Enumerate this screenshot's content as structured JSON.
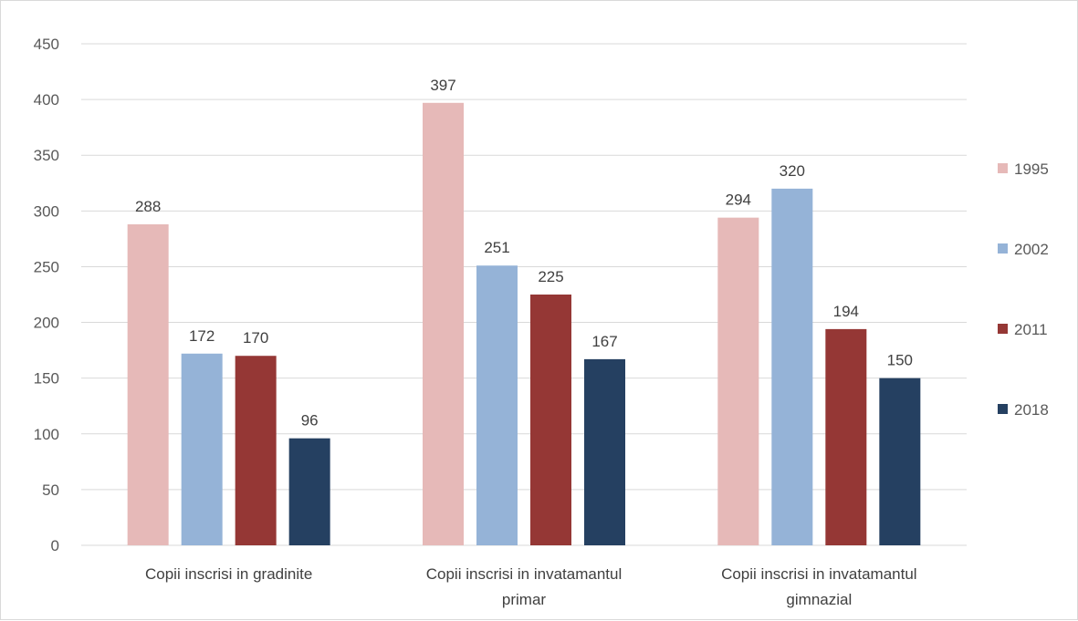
{
  "chart_data": {
    "type": "bar",
    "categories": [
      [
        "Copii inscrisi in gradinite"
      ],
      [
        "Copii inscrisi in invatamantul",
        "primar"
      ],
      [
        "Copii inscrisi in invatamantul",
        "gimnazial"
      ]
    ],
    "series": [
      {
        "name": "1995",
        "color": "#e6b9b8",
        "values": [
          288,
          397,
          294
        ]
      },
      {
        "name": "2002",
        "color": "#95b3d7",
        "values": [
          172,
          251,
          320
        ]
      },
      {
        "name": "2011",
        "color": "#953735",
        "values": [
          170,
          225,
          194
        ]
      },
      {
        "name": "2018",
        "color": "#254061",
        "values": [
          96,
          167,
          150
        ]
      }
    ],
    "ylim": [
      0,
      450
    ],
    "yticks": [
      0,
      50,
      100,
      150,
      200,
      250,
      300,
      350,
      400,
      450
    ],
    "grid": true,
    "legend": "right",
    "title": "",
    "xlabel": "",
    "ylabel": ""
  }
}
